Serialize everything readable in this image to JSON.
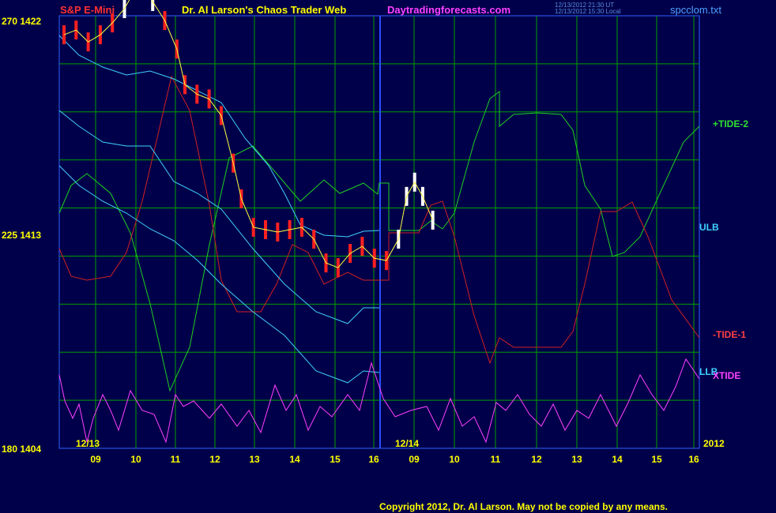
{
  "header": {
    "symbol": "S&P E-Mini",
    "title": "Dr. Al Larson's Chaos Trader Web",
    "site": "Daytradingforecasts.com",
    "timestamp_ut": "12/13/2012 21:30 UT",
    "timestamp_local": "12/13/2012 15:30 Local",
    "filename": "spcclom.txt"
  },
  "footer": {
    "copyright": "Copyright 2012, Dr. Al Larson. May not be copied by any means."
  },
  "colors": {
    "background": "#00004a",
    "grid": "#00a000",
    "price": "#ff2020",
    "price_recent": "#ffffff",
    "tide_plus2": "#20d020",
    "tide_minus1": "#d02020",
    "ulb_llb": "#40d0ff",
    "xtide": "#ff40ff",
    "yellow_ma": "#ffff40"
  },
  "chart_data": {
    "type": "line",
    "title": "S&P E-Mini",
    "y_ticks": [
      {
        "left": "270",
        "right": "1422",
        "value": 1422
      },
      {
        "left": "225",
        "right": "1413",
        "value": 1413
      },
      {
        "left": "180",
        "right": "1404",
        "value": 1404
      }
    ],
    "ylim": [
      1404,
      1422.2
    ],
    "x_ticks": [
      "09",
      "10",
      "11",
      "12",
      "13",
      "14",
      "15",
      "16",
      "09",
      "10",
      "11",
      "12",
      "13",
      "14",
      "15",
      "16"
    ],
    "date_labels": [
      "12/13",
      "12/14",
      "2012"
    ],
    "series_labels": [
      "+TIDE-2",
      "ULB",
      "-TIDE-1",
      "LLB",
      "XTIDE"
    ],
    "price_close": [
      {
        "x": 0,
        "y": 1421.4
      },
      {
        "x": 0.3,
        "y": 1421.6
      },
      {
        "x": 0.6,
        "y": 1421.1
      },
      {
        "x": 0.9,
        "y": 1421.4
      },
      {
        "x": 1.2,
        "y": 1421.9
      },
      {
        "x": 1.5,
        "y": 1422.5
      },
      {
        "x": 1.8,
        "y": 1423.4
      },
      {
        "x": 2.0,
        "y": 1423.3
      },
      {
        "x": 2.2,
        "y": 1422.8
      },
      {
        "x": 2.5,
        "y": 1422.0
      },
      {
        "x": 2.8,
        "y": 1420.8
      },
      {
        "x": 3.0,
        "y": 1419.3
      },
      {
        "x": 3.3,
        "y": 1418.9
      },
      {
        "x": 3.6,
        "y": 1418.7
      },
      {
        "x": 3.9,
        "y": 1418.0
      },
      {
        "x": 4.2,
        "y": 1416.0
      },
      {
        "x": 4.4,
        "y": 1414.5
      },
      {
        "x": 4.7,
        "y": 1413.3
      },
      {
        "x": 5.0,
        "y": 1413.2
      },
      {
        "x": 5.3,
        "y": 1413.1
      },
      {
        "x": 5.6,
        "y": 1413.2
      },
      {
        "x": 5.9,
        "y": 1413.3
      },
      {
        "x": 6.2,
        "y": 1412.8
      },
      {
        "x": 6.5,
        "y": 1411.8
      },
      {
        "x": 6.8,
        "y": 1411.6
      },
      {
        "x": 7.1,
        "y": 1412.2
      },
      {
        "x": 7.4,
        "y": 1412.5
      },
      {
        "x": 7.7,
        "y": 1412.0
      },
      {
        "x": 8.0,
        "y": 1411.9
      },
      {
        "x": 8.3,
        "y": 1412.8
      },
      {
        "x": 8.5,
        "y": 1414.6
      },
      {
        "x": 8.7,
        "y": 1415.2
      },
      {
        "x": 8.9,
        "y": 1414.6
      },
      {
        "x": 9.15,
        "y": 1413.6
      }
    ]
  }
}
